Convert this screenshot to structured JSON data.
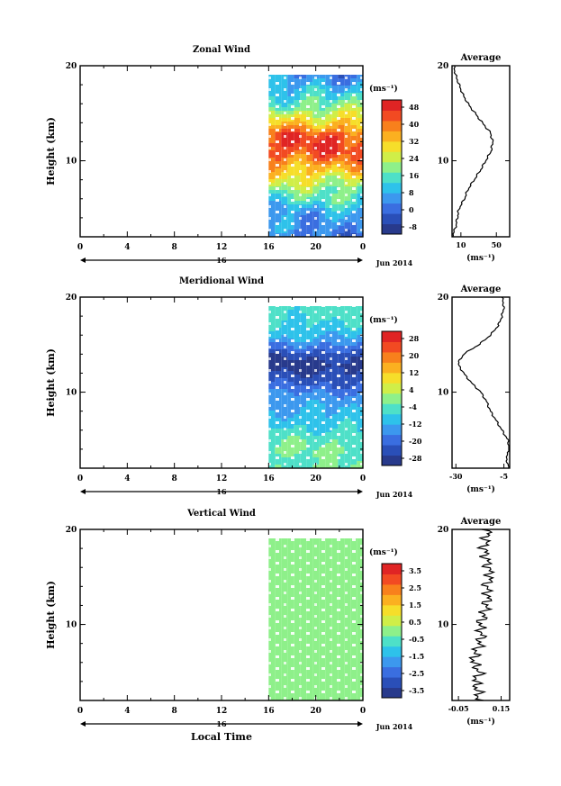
{
  "figure": {
    "x_label": "Local Time",
    "date_label": "Jun 2014",
    "day_label": "16",
    "y_label": "Height (km)",
    "unit_label": "(ms⁻¹)"
  },
  "chart_data": [
    {
      "type": "heatmap",
      "title": "Zonal Wind",
      "xlabel": "",
      "ylabel": "Height (km)",
      "x_ticks": [
        "0",
        "4",
        "8",
        "12",
        "16",
        "20",
        "0"
      ],
      "x_range": [
        0,
        24
      ],
      "y_ticks": [
        "20",
        "10"
      ],
      "y_range": [
        2,
        20
      ],
      "data_start_hour": 16,
      "colorbar": {
        "unit": "(ms⁻¹)",
        "tick_labels": [
          "48",
          "40",
          "32",
          "24",
          "16",
          "8",
          "0",
          "-8"
        ],
        "range": [
          -12,
          52
        ],
        "colors": [
          "#283a8c",
          "#2a4fb8",
          "#3a6ee0",
          "#3c98ee",
          "#2ec2ea",
          "#4ee0c8",
          "#8ef08a",
          "#d0ee48",
          "#f6de2a",
          "#fbb020",
          "#f8801c",
          "#f24a22",
          "#e02424"
        ]
      },
      "profile_anchors": [
        [
          2,
          0
        ],
        [
          3,
          4
        ],
        [
          4,
          6
        ],
        [
          5,
          8
        ],
        [
          6,
          14
        ],
        [
          7,
          18
        ],
        [
          8,
          25
        ],
        [
          9,
          32
        ],
        [
          10,
          38
        ],
        [
          11,
          44
        ],
        [
          12,
          46
        ],
        [
          13,
          43
        ],
        [
          14,
          34
        ],
        [
          15,
          26
        ],
        [
          16,
          18
        ],
        [
          17,
          12
        ],
        [
          18,
          8
        ],
        [
          19,
          4
        ],
        [
          20,
          2
        ]
      ],
      "average": {
        "title": "Average",
        "x_ticks": [
          "10",
          "50"
        ],
        "x_range": [
          0,
          65
        ],
        "xlabel": "(ms⁻¹)",
        "y_ticks": [
          "20",
          "10"
        ]
      }
    },
    {
      "type": "heatmap",
      "title": "Meridional Wind",
      "xlabel": "",
      "ylabel": "Height (km)",
      "x_ticks": [
        "0",
        "4",
        "8",
        "12",
        "16",
        "20",
        "0"
      ],
      "x_range": [
        0,
        24
      ],
      "y_ticks": [
        "20",
        "10"
      ],
      "y_range": [
        2,
        20
      ],
      "data_start_hour": 16,
      "colorbar": {
        "unit": "(ms⁻¹)",
        "tick_labels": [
          "28",
          "20",
          "12",
          "4",
          "-4",
          "-12",
          "-20",
          "-28"
        ],
        "range": [
          -32,
          32
        ],
        "colors": [
          "#283a8c",
          "#2a4fb8",
          "#3a6ee0",
          "#3c98ee",
          "#2ec2ea",
          "#4ee0c8",
          "#8ef08a",
          "#d0ee48",
          "#f6de2a",
          "#fbb020",
          "#f8801c",
          "#f24a22",
          "#e02424"
        ]
      },
      "profile_anchors": [
        [
          2,
          -2
        ],
        [
          3,
          -4
        ],
        [
          4,
          -2
        ],
        [
          5,
          -3
        ],
        [
          6,
          -6
        ],
        [
          7,
          -9
        ],
        [
          8,
          -12
        ],
        [
          9,
          -14
        ],
        [
          10,
          -17
        ],
        [
          11,
          -22
        ],
        [
          12,
          -26
        ],
        [
          13,
          -29
        ],
        [
          14,
          -26
        ],
        [
          15,
          -18
        ],
        [
          16,
          -12
        ],
        [
          17,
          -8
        ],
        [
          18,
          -6
        ],
        [
          19,
          -5
        ],
        [
          20,
          -6
        ]
      ],
      "average": {
        "title": "Average",
        "x_ticks": [
          "-30",
          "-5"
        ],
        "x_range": [
          -32,
          -2
        ],
        "xlabel": "(ms⁻¹)",
        "y_ticks": [
          "20",
          "10"
        ]
      }
    },
    {
      "type": "heatmap",
      "title": "Vertical Wind",
      "xlabel": "Local Time",
      "ylabel": "Height (km)",
      "x_ticks": [
        "0",
        "4",
        "8",
        "12",
        "16",
        "20",
        "0"
      ],
      "x_range": [
        0,
        24
      ],
      "y_ticks": [
        "20",
        "10"
      ],
      "y_range": [
        2,
        20
      ],
      "data_start_hour": 16,
      "colorbar": {
        "unit": "(ms⁻¹)",
        "tick_labels": [
          "3.5",
          "2.5",
          "1.5",
          "0.5",
          "-0.5",
          "-1.5",
          "-2.5",
          "-3.5"
        ],
        "range": [
          -4,
          4
        ],
        "colors": [
          "#283a8c",
          "#2a4fb8",
          "#3a6ee0",
          "#3c98ee",
          "#2ec2ea",
          "#4ee0c8",
          "#8ef08a",
          "#d0ee48",
          "#f6de2a",
          "#fbb020",
          "#f8801c",
          "#f24a22",
          "#e02424"
        ]
      },
      "profile_anchors": [
        [
          2,
          0.05
        ],
        [
          3,
          0.04
        ],
        [
          4,
          0.03
        ],
        [
          5,
          0.05
        ],
        [
          6,
          0.02
        ],
        [
          7,
          0.03
        ],
        [
          8,
          0.05
        ],
        [
          9,
          0.06
        ],
        [
          10,
          0.05
        ],
        [
          11,
          0.07
        ],
        [
          12,
          0.08
        ],
        [
          13,
          0.09
        ],
        [
          14,
          0.08
        ],
        [
          15,
          0.1
        ],
        [
          16,
          0.09
        ],
        [
          17,
          0.08
        ],
        [
          18,
          0.07
        ],
        [
          19,
          0.08
        ],
        [
          20,
          0.09
        ]
      ],
      "average": {
        "title": "Average",
        "x_ticks": [
          "-0.05",
          "0.15"
        ],
        "x_range": [
          -0.08,
          0.19
        ],
        "xlabel": "(ms⁻¹)",
        "y_ticks": [
          "20",
          "10"
        ]
      }
    }
  ]
}
